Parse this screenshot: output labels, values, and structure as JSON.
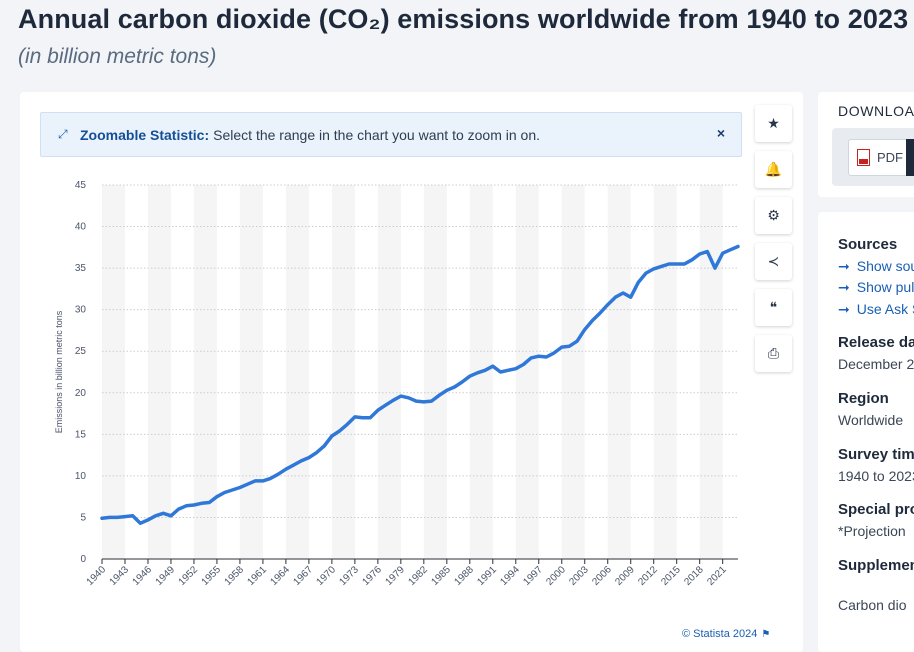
{
  "header": {
    "title": "Annual carbon dioxide (CO₂) emissions worldwide from 1940 to 2023",
    "subtitle": "(in billion metric tons)"
  },
  "zoom_banner": {
    "label": "Zoomable Statistic:",
    "text": "Select the range in the chart you want to zoom in on.",
    "close": "×"
  },
  "toolbar": [
    {
      "name": "star-icon",
      "glyph": "★"
    },
    {
      "name": "bell-icon",
      "glyph": "🔔"
    },
    {
      "name": "gear-icon",
      "glyph": "⚙"
    },
    {
      "name": "share-icon",
      "glyph": "≺"
    },
    {
      "name": "quote-icon",
      "glyph": "❝"
    },
    {
      "name": "print-icon",
      "glyph": "⎙"
    }
  ],
  "download": {
    "label": "DOWNLOA",
    "pdf": "PDF"
  },
  "info": {
    "sources_title": "Sources",
    "links": [
      "Show sou",
      "Show pul",
      "Use Ask S"
    ],
    "release_title": "Release da",
    "release_value": "December 2",
    "region_title": "Region",
    "region_value": "Worldwide",
    "survey_title": "Survey tim",
    "survey_value": "1940 to 2023",
    "special_title": "Special pro",
    "special_value": "*Projection",
    "supplement_title": "Supplemen",
    "supplement_value": "Carbon dio"
  },
  "copyright": "© Statista 2024",
  "chart_data": {
    "type": "line",
    "title": "",
    "xlabel": "",
    "ylabel": "Emissions in billion metric tons",
    "ylim": [
      0,
      45
    ],
    "yticks": [
      0,
      5,
      10,
      15,
      20,
      25,
      30,
      35,
      40,
      45
    ],
    "xlim": [
      1940,
      2023
    ],
    "xticks": [
      1940,
      1943,
      1946,
      1949,
      1952,
      1955,
      1958,
      1961,
      1964,
      1967,
      1970,
      1973,
      1976,
      1979,
      1982,
      1985,
      1988,
      1991,
      1994,
      1997,
      2000,
      2003,
      2006,
      2009,
      2012,
      2015,
      2018,
      2021
    ],
    "grid": true,
    "line_color": "#2f78d8",
    "series": [
      {
        "name": "",
        "x": [
          1940,
          1941,
          1942,
          1943,
          1944,
          1945,
          1946,
          1947,
          1948,
          1949,
          1950,
          1951,
          1952,
          1953,
          1954,
          1955,
          1956,
          1957,
          1958,
          1959,
          1960,
          1961,
          1962,
          1963,
          1964,
          1965,
          1966,
          1967,
          1968,
          1969,
          1970,
          1971,
          1972,
          1973,
          1974,
          1975,
          1976,
          1977,
          1978,
          1979,
          1980,
          1981,
          1982,
          1983,
          1984,
          1985,
          1986,
          1987,
          1988,
          1989,
          1990,
          1991,
          1992,
          1993,
          1994,
          1995,
          1996,
          1997,
          1998,
          1999,
          2000,
          2001,
          2002,
          2003,
          2004,
          2005,
          2006,
          2007,
          2008,
          2009,
          2010,
          2011,
          2012,
          2013,
          2014,
          2015,
          2016,
          2017,
          2018,
          2019,
          2020,
          2021,
          2022,
          2023
        ],
        "values": [
          4.9,
          5.0,
          5.0,
          5.1,
          5.2,
          4.3,
          4.7,
          5.2,
          5.5,
          5.2,
          6.0,
          6.4,
          6.5,
          6.7,
          6.8,
          7.5,
          8.0,
          8.3,
          8.6,
          9.0,
          9.4,
          9.4,
          9.7,
          10.2,
          10.8,
          11.3,
          11.8,
          12.2,
          12.8,
          13.6,
          14.8,
          15.4,
          16.2,
          17.1,
          17.0,
          17.0,
          17.9,
          18.5,
          19.1,
          19.6,
          19.4,
          19.0,
          18.9,
          19.0,
          19.7,
          20.3,
          20.7,
          21.3,
          22.0,
          22.4,
          22.7,
          23.2,
          22.5,
          22.7,
          22.9,
          23.4,
          24.2,
          24.4,
          24.3,
          24.8,
          25.5,
          25.6,
          26.2,
          27.6,
          28.7,
          29.6,
          30.6,
          31.5,
          32.0,
          31.5,
          33.3,
          34.4,
          34.9,
          35.2,
          35.5,
          35.5,
          35.5,
          36.0,
          36.7,
          37.0,
          35.0,
          36.8,
          37.2,
          37.6
        ]
      }
    ]
  }
}
